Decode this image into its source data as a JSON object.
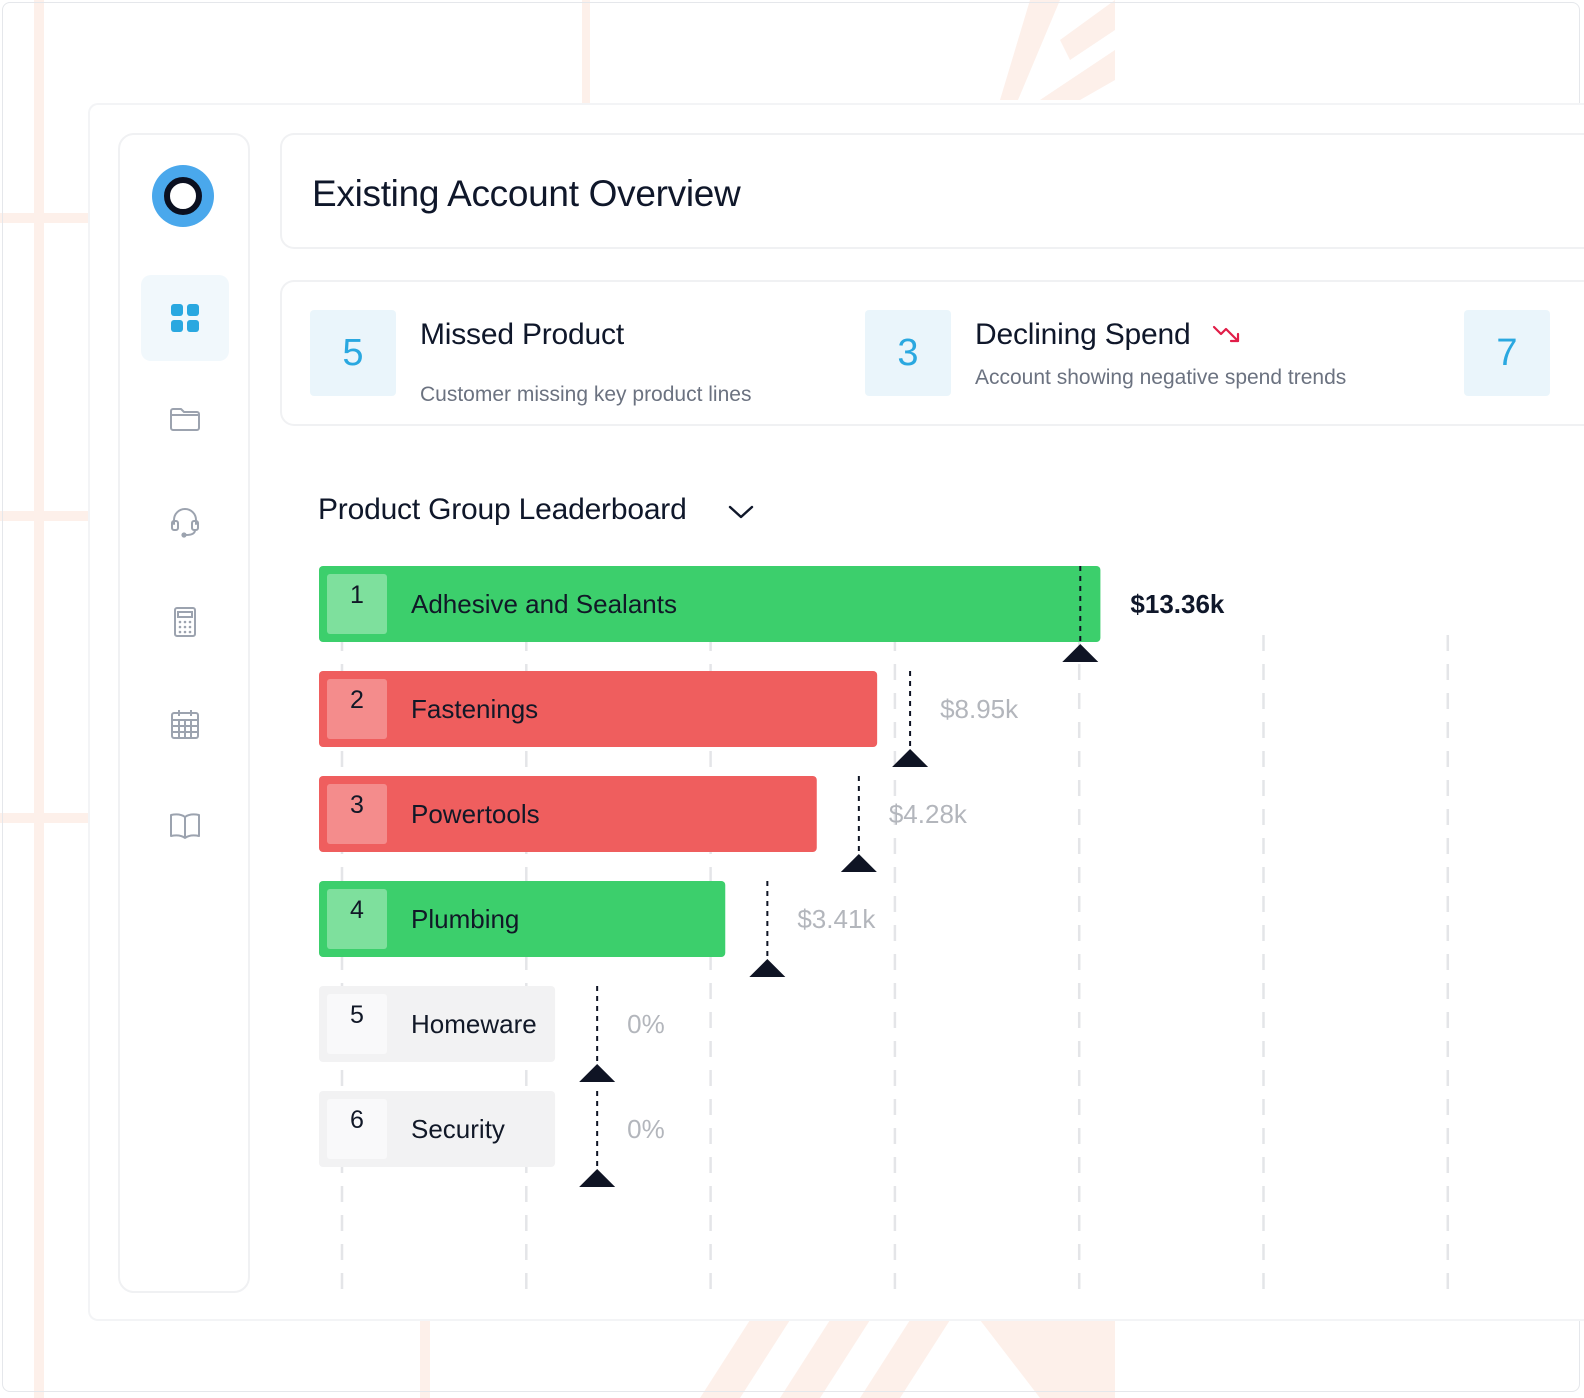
{
  "page": {
    "title": "Existing Account Overview"
  },
  "sidebar": {
    "items": [
      {
        "icon": "grid-icon",
        "active": true
      },
      {
        "icon": "folder-icon",
        "active": false
      },
      {
        "icon": "headset-icon",
        "active": false
      },
      {
        "icon": "calculator-icon",
        "active": false
      },
      {
        "icon": "calendar-icon",
        "active": false
      },
      {
        "icon": "book-icon",
        "active": false
      }
    ]
  },
  "stats": [
    {
      "value": "5",
      "title": "Missed Product",
      "description": "Customer missing key product lines"
    },
    {
      "value": "3",
      "title": "Declining Spend",
      "description": "Account showing negative spend trends",
      "trend_icon": "trend-down-icon"
    },
    {
      "value": "7",
      "title": "",
      "description": ""
    }
  ],
  "leaderboard": {
    "title": "Product Group Leaderboard"
  },
  "colors": {
    "accent": "#2aa8e0",
    "positive": "#3ccf6c",
    "negative": "#ef5e5e",
    "neutral": "#f2f2f3",
    "marker": "#0f1424",
    "trend_down": "#e11d48"
  },
  "chart_data": {
    "type": "bar",
    "orientation": "horizontal",
    "rows": [
      {
        "rank": "1",
        "name": "Adhesive and Sealants",
        "value_label": "$13.36k",
        "status": "positive",
        "bar_fraction": 0.427,
        "target_fraction": 0.416,
        "value_emphasis": true
      },
      {
        "rank": "2",
        "name": "Fastenings",
        "value_label": "$8.95k",
        "status": "negative",
        "bar_fraction": 0.305,
        "target_fraction": 0.323,
        "value_emphasis": false
      },
      {
        "rank": "3",
        "name": "Powertools",
        "value_label": "$4.28k",
        "status": "negative",
        "bar_fraction": 0.272,
        "target_fraction": 0.295,
        "value_emphasis": false
      },
      {
        "rank": "4",
        "name": "Plumbing",
        "value_label": "$3.41k",
        "status": "positive",
        "bar_fraction": 0.222,
        "target_fraction": 0.245,
        "value_emphasis": false
      },
      {
        "rank": "5",
        "name": "Homeware",
        "value_label": "0%",
        "status": "neutral",
        "bar_fraction": 0.129,
        "target_fraction": 0.152,
        "value_emphasis": false
      },
      {
        "rank": "6",
        "name": "Security",
        "value_label": "0%",
        "status": "neutral",
        "bar_fraction": 0.129,
        "target_fraction": 0.152,
        "value_emphasis": false
      }
    ],
    "gridlines": 7
  }
}
